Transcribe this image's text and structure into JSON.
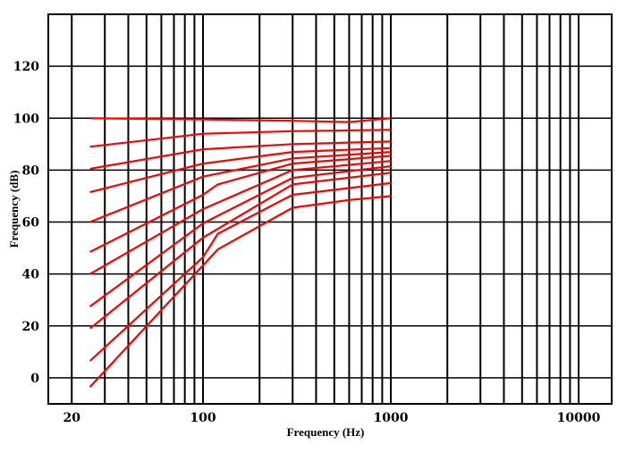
{
  "chart_data": {
    "type": "line",
    "title": "",
    "xlabel": "Frequency (Hz)",
    "ylabel": "Frequency (dB)",
    "x_scale": "log",
    "xlim": [
      15,
      15000
    ],
    "ylim": [
      -10,
      140
    ],
    "grid": true,
    "x_tick_labels": [
      "20",
      "100",
      "1000",
      "10000"
    ],
    "x_tick_values": [
      20,
      100,
      1000,
      10000
    ],
    "y_tick_labels": [
      "0",
      "20",
      "40",
      "60",
      "80",
      "100",
      "120"
    ],
    "y_tick_values": [
      0,
      20,
      40,
      60,
      80,
      100,
      120
    ],
    "x_gridlines": [
      20,
      30,
      40,
      50,
      60,
      70,
      80,
      90,
      100,
      200,
      300,
      400,
      500,
      600,
      700,
      800,
      900,
      1000,
      2000,
      3000,
      4000,
      5000,
      6000,
      7000,
      8000,
      9000,
      10000
    ],
    "series_color": "#ff0000",
    "series": [
      {
        "x": [
          25,
          100,
          300,
          600,
          1000
        ],
        "y": [
          100,
          99.5,
          99,
          98.5,
          100
        ]
      },
      {
        "x": [
          25,
          100,
          300,
          1000
        ],
        "y": [
          89,
          94,
          95,
          95.5
        ]
      },
      {
        "x": [
          25,
          100,
          300,
          1000
        ],
        "y": [
          80.5,
          88,
          90,
          91
        ]
      },
      {
        "x": [
          25,
          100,
          300,
          1000
        ],
        "y": [
          71.5,
          82.5,
          87,
          88.5
        ]
      },
      {
        "x": [
          25,
          100,
          300,
          1000
        ],
        "y": [
          60,
          77.5,
          84.5,
          87
        ]
      },
      {
        "x": [
          25,
          100,
          120,
          300,
          1000
        ],
        "y": [
          48.5,
          70.5,
          74.5,
          82.5,
          85.5
        ]
      },
      {
        "x": [
          25,
          100,
          300,
          1000
        ],
        "y": [
          40,
          65,
          80,
          83.5
        ]
      },
      {
        "x": [
          25,
          100,
          300,
          1000
        ],
        "y": [
          27.5,
          59.5,
          77,
          81.5
        ]
      },
      {
        "x": [
          25,
          100,
          300,
          1000
        ],
        "y": [
          19,
          54,
          74.5,
          79
        ]
      },
      {
        "x": [
          25,
          100,
          120,
          300,
          1000
        ],
        "y": [
          6.5,
          46.5,
          55.5,
          70.5,
          75
        ]
      },
      {
        "x": [
          25,
          120,
          300,
          600,
          1000
        ],
        "y": [
          -3.5,
          49.5,
          65.5,
          68.5,
          70
        ]
      }
    ]
  }
}
